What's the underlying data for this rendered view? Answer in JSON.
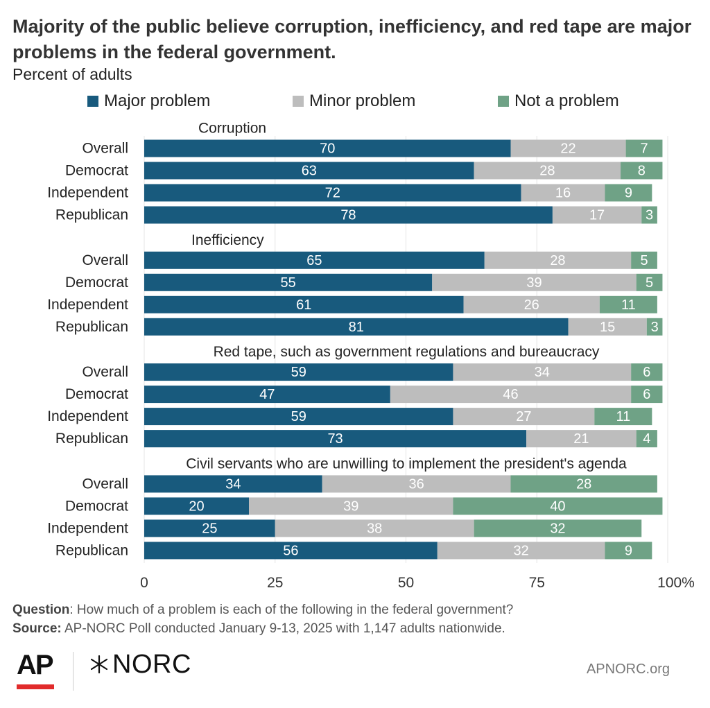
{
  "header": {
    "title": "Majority of the public believe corruption, inefficiency, and red tape are major problems in the federal government.",
    "subtitle": "Percent of adults"
  },
  "legend": [
    {
      "label": "Major problem",
      "color": "#185a7d"
    },
    {
      "label": "Minor problem",
      "color": "#bdbdbd"
    },
    {
      "label": "Not a problem",
      "color": "#6fa286"
    }
  ],
  "chart_data": {
    "type": "bar",
    "orientation": "horizontal",
    "stacked": true,
    "xlim": [
      0,
      100
    ],
    "x_ticks": [
      "0",
      "25",
      "50",
      "75",
      "100%"
    ],
    "grid": true,
    "legend_position": "top",
    "series_names": [
      "Major problem",
      "Minor problem",
      "Not a problem"
    ],
    "series_colors": [
      "#185a7d",
      "#bdbdbd",
      "#6fa286"
    ],
    "groups": [
      {
        "title": "Corruption",
        "rows": [
          {
            "label": "Overall",
            "values": [
              70,
              22,
              7
            ]
          },
          {
            "label": "Democrat",
            "values": [
              63,
              28,
              8
            ]
          },
          {
            "label": "Independent",
            "values": [
              72,
              16,
              9
            ]
          },
          {
            "label": "Republican",
            "values": [
              78,
              17,
              3
            ]
          }
        ]
      },
      {
        "title": "Inefficiency",
        "rows": [
          {
            "label": "Overall",
            "values": [
              65,
              28,
              5
            ]
          },
          {
            "label": "Democrat",
            "values": [
              55,
              39,
              5
            ]
          },
          {
            "label": "Independent",
            "values": [
              61,
              26,
              11
            ]
          },
          {
            "label": "Republican",
            "values": [
              81,
              15,
              3
            ]
          }
        ]
      },
      {
        "title": "Red tape, such as government regulations and bureaucracy",
        "rows": [
          {
            "label": "Overall",
            "values": [
              59,
              34,
              6
            ]
          },
          {
            "label": "Democrat",
            "values": [
              47,
              46,
              6
            ]
          },
          {
            "label": "Independent",
            "values": [
              59,
              27,
              11
            ]
          },
          {
            "label": "Republican",
            "values": [
              73,
              21,
              4
            ]
          }
        ]
      },
      {
        "title": "Civil servants who are unwilling to implement the president's agenda",
        "rows": [
          {
            "label": "Overall",
            "values": [
              34,
              36,
              28
            ]
          },
          {
            "label": "Democrat",
            "values": [
              20,
              39,
              40
            ]
          },
          {
            "label": "Independent",
            "values": [
              25,
              38,
              32
            ]
          },
          {
            "label": "Republican",
            "values": [
              56,
              32,
              9
            ]
          }
        ]
      }
    ]
  },
  "footer": {
    "question_label": "Question",
    "question_text": ": How much of a problem is each of the following in the federal government?",
    "source_label": "Source:",
    "source_text": " AP-NORC Poll conducted January 9-13, 2025 with 1,147 adults nationwide.",
    "ap_logo": "AP",
    "norc_logo": "NORC",
    "website": "APNORC.org"
  }
}
